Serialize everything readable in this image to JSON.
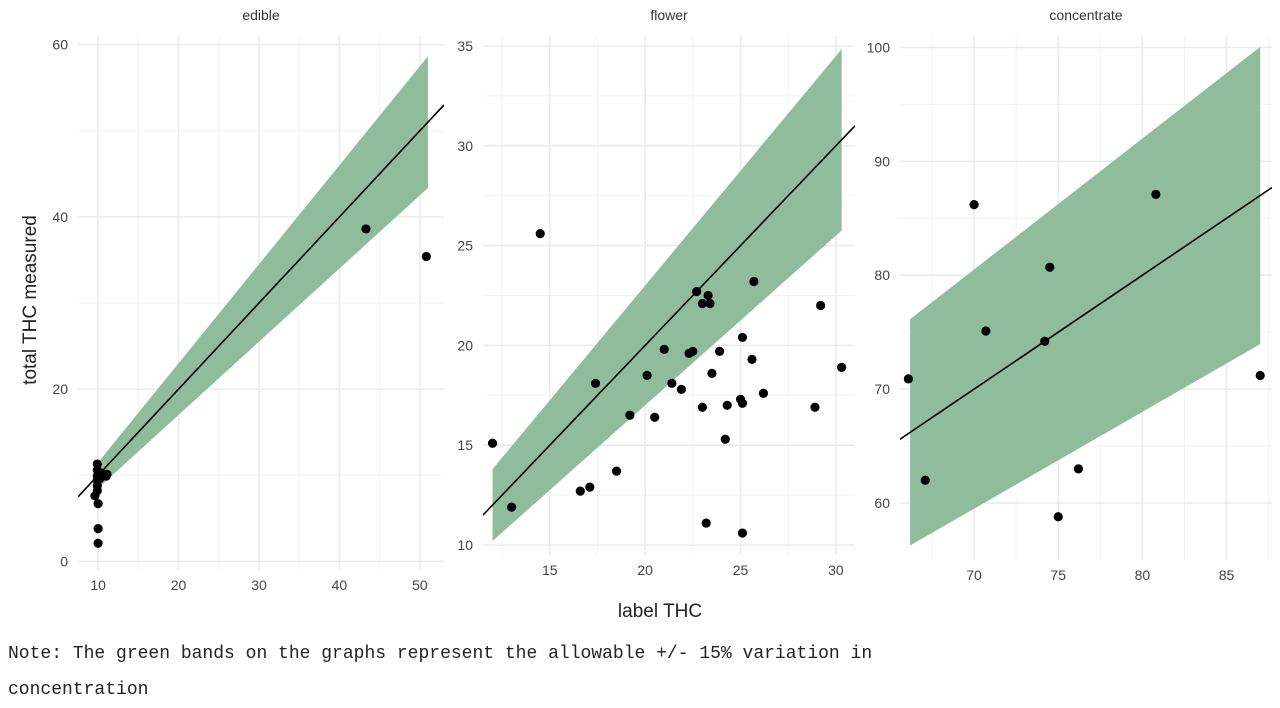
{
  "figure": {
    "ylabel": "total THC measured",
    "xlabel": "label THC",
    "note": "Note: The green bands on the graphs represent the allowable +/- 15% variation in\nconcentration"
  },
  "colors": {
    "band": "#8fbc9b",
    "line": "#000000",
    "point": "#000000",
    "grid": "#ebebeb",
    "text": "#444444"
  },
  "chart_data": [
    {
      "type": "scatter",
      "title": "edible",
      "xlim": [
        7.5,
        53
      ],
      "ylim": [
        -1,
        61
      ],
      "xticks": [
        10,
        20,
        30,
        40,
        50
      ],
      "yticks": [
        0,
        20,
        40,
        60
      ],
      "band": {
        "x": [
          10,
          51
        ],
        "tolerance": 0.15
      },
      "reference_line": {
        "slope": 1,
        "intercept": 0
      },
      "points": [
        [
          9.6,
          7.6
        ],
        [
          9.9,
          11.3
        ],
        [
          9.9,
          10.6
        ],
        [
          9.9,
          9.9
        ],
        [
          9.9,
          9.4
        ],
        [
          9.9,
          8.8
        ],
        [
          9.9,
          8.2
        ],
        [
          10.0,
          6.7
        ],
        [
          10.0,
          3.8
        ],
        [
          10.0,
          2.1
        ],
        [
          10.2,
          9.6
        ],
        [
          10.5,
          10.2
        ],
        [
          11.0,
          9.9
        ],
        [
          11.1,
          10.1
        ],
        [
          43.3,
          38.6
        ],
        [
          50.8,
          35.4
        ]
      ]
    },
    {
      "type": "scatter",
      "title": "flower",
      "xlim": [
        11.5,
        31
      ],
      "ylim": [
        9.5,
        35.5
      ],
      "xticks": [
        15,
        20,
        25,
        30
      ],
      "yticks": [
        10,
        15,
        20,
        25,
        30,
        35
      ],
      "band": {
        "x": [
          12,
          30.3
        ],
        "tolerance": 0.15
      },
      "reference_line": {
        "slope": 1,
        "intercept": 0
      },
      "points": [
        [
          12.0,
          15.1
        ],
        [
          13.0,
          11.9
        ],
        [
          14.5,
          25.6
        ],
        [
          16.6,
          12.7
        ],
        [
          17.1,
          12.9
        ],
        [
          17.4,
          18.1
        ],
        [
          18.5,
          13.7
        ],
        [
          19.2,
          16.5
        ],
        [
          20.1,
          18.5
        ],
        [
          20.5,
          16.4
        ],
        [
          21.0,
          19.8
        ],
        [
          21.4,
          18.1
        ],
        [
          21.9,
          17.8
        ],
        [
          22.3,
          19.6
        ],
        [
          22.5,
          19.7
        ],
        [
          22.7,
          22.7
        ],
        [
          23.0,
          22.1
        ],
        [
          23.0,
          16.9
        ],
        [
          23.2,
          11.1
        ],
        [
          23.3,
          22.5
        ],
        [
          23.4,
          22.1
        ],
        [
          23.5,
          18.6
        ],
        [
          23.9,
          19.7
        ],
        [
          24.2,
          15.3
        ],
        [
          24.3,
          17.0
        ],
        [
          25.0,
          17.3
        ],
        [
          25.1,
          20.4
        ],
        [
          25.1,
          17.1
        ],
        [
          25.1,
          10.6
        ],
        [
          25.6,
          19.3
        ],
        [
          25.7,
          23.2
        ],
        [
          26.2,
          17.6
        ],
        [
          28.9,
          16.9
        ],
        [
          29.2,
          22.0
        ],
        [
          30.3,
          18.9
        ]
      ]
    },
    {
      "type": "scatter",
      "title": "concentrate",
      "xlim": [
        65.6,
        87.7
      ],
      "ylim": [
        55,
        101
      ],
      "xticks": [
        70,
        75,
        80,
        85
      ],
      "yticks": [
        60,
        70,
        80,
        90,
        100
      ],
      "band": {
        "x": [
          66.2,
          87.0
        ],
        "tolerance": 0.15
      },
      "reference_line": {
        "slope": 1,
        "intercept": 0
      },
      "points": [
        [
          66.1,
          70.9
        ],
        [
          67.1,
          62.0
        ],
        [
          70.0,
          86.2
        ],
        [
          70.7,
          75.1
        ],
        [
          74.2,
          74.2
        ],
        [
          74.5,
          80.7
        ],
        [
          75.0,
          58.8
        ],
        [
          76.2,
          63.0
        ],
        [
          80.8,
          87.1
        ],
        [
          87.0,
          71.2
        ]
      ]
    }
  ]
}
